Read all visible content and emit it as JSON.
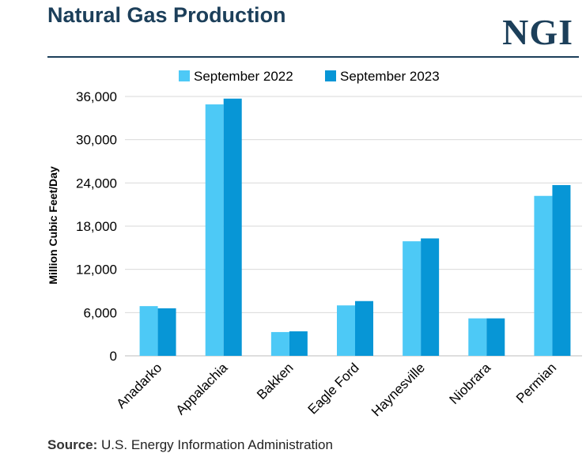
{
  "header": {
    "title": "Natural Gas Production",
    "logo_text": "NGI"
  },
  "footer": {
    "source_label": "Source:",
    "source_text": "U.S. Energy Information Administration"
  },
  "colors": {
    "series_2022": "#4dc9f6",
    "series_2023": "#0796d6",
    "title": "#1c3f5a"
  },
  "chart_data": {
    "type": "bar",
    "title": "Natural Gas Production",
    "xlabel": "",
    "ylabel": "Million Cubic Feet/Day",
    "categories": [
      "Anadarko",
      "Appalachia",
      "Bakken",
      "Eagle Ford",
      "Haynesville",
      "Niobrara",
      "Permian"
    ],
    "series": [
      {
        "name": "September 2022",
        "color": "#4dc9f6",
        "values": [
          6900,
          34900,
          3300,
          7000,
          15900,
          5200,
          22200
        ]
      },
      {
        "name": "September 2023",
        "color": "#0796d6",
        "values": [
          6600,
          35700,
          3400,
          7600,
          16300,
          5200,
          23700
        ]
      }
    ],
    "ylim": [
      0,
      36000
    ],
    "yticks": [
      0,
      6000,
      12000,
      18000,
      24000,
      30000,
      36000
    ],
    "ytick_labels": [
      "0",
      "6,000",
      "12,000",
      "18,000",
      "24,000",
      "30,000",
      "36,000"
    ],
    "grid": true,
    "legend_position": "top-center"
  }
}
